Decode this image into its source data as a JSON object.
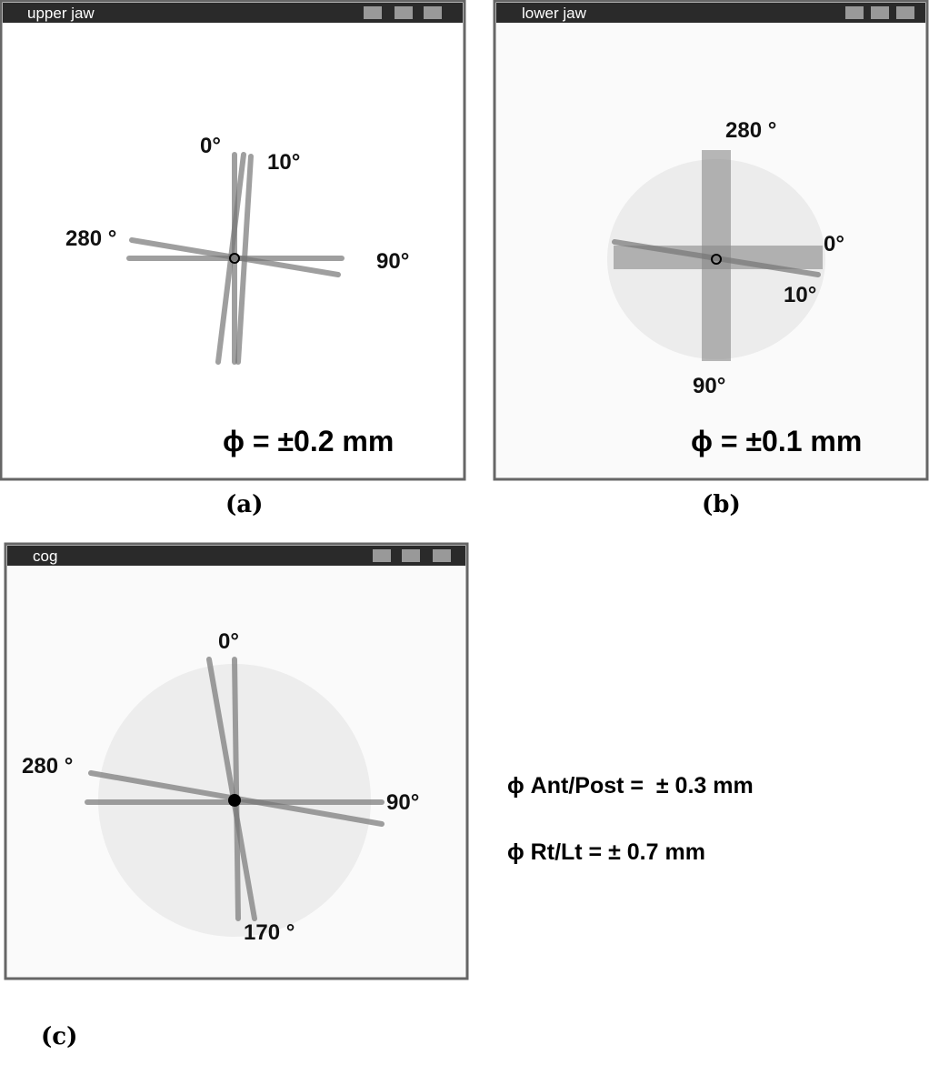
{
  "panels": [
    {
      "title": "upper jaw",
      "labels": [
        "0°",
        "10°",
        "280 °",
        "90°"
      ],
      "precision": "ϕ = ±0.2 mm",
      "caption": "(a)"
    },
    {
      "title": "lower jaw",
      "labels": [
        "280 °",
        "0°",
        "10°",
        "90°"
      ],
      "precision": "ϕ = ±0.1 mm",
      "caption": "(b)"
    },
    {
      "title": "cog",
      "labels": [
        "0°",
        "280 °",
        "90°",
        "170 °"
      ],
      "caption": "(c)"
    }
  ],
  "notes": [
    "ϕ Ant/Post =  ± 0.3 mm",
    "ϕ Rt/Lt = ± 0.7 mm"
  ]
}
